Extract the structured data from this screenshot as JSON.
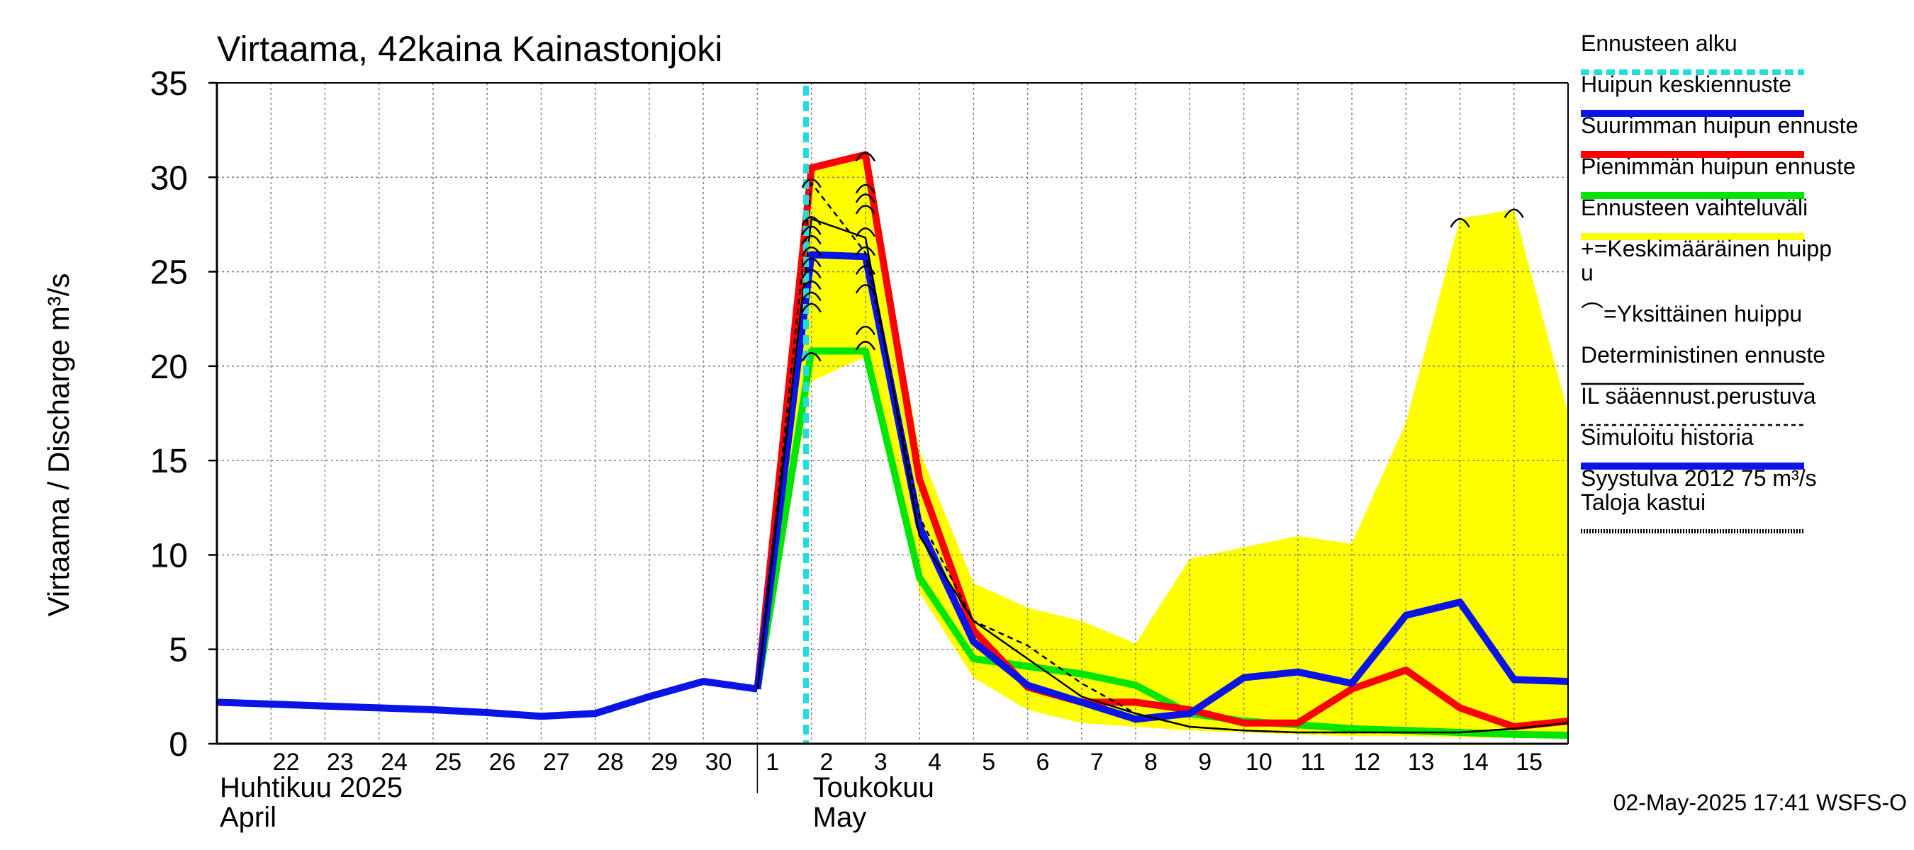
{
  "title": "Virtaama, 42kaina Kainastonjoki",
  "ylabel": "Virtaama / Discharge   m³/s",
  "timestamp": "02-May-2025 17:41 WSFS-O",
  "colors": {
    "forecast_start": "#22dddd",
    "mean_peak": "#0a14e6",
    "max_peak": "#ff0000",
    "min_peak": "#00e600",
    "range": "#ffff00",
    "black": "#000000",
    "grid": "#808080"
  },
  "legend": [
    {
      "key": "forecast_start",
      "label": "Ennusteen alku",
      "style": "dashed",
      "color": "#22dddd"
    },
    {
      "key": "mean_peak",
      "label": "Huipun keskiennuste",
      "style": "thick",
      "color": "#0a14e6"
    },
    {
      "key": "max_peak",
      "label": "Suurimman huipun ennuste",
      "style": "thick",
      "color": "#ff0000"
    },
    {
      "key": "min_peak",
      "label": "Pienimmän huipun ennuste",
      "style": "thick",
      "color": "#00e600"
    },
    {
      "key": "range",
      "label": "Ennusteen vaihteluväli",
      "style": "thick",
      "color": "#ffff00"
    },
    {
      "key": "avg_peak_marker",
      "label": "+=Keskimääräinen huipp\nu",
      "style": "none",
      "color": "#000000"
    },
    {
      "key": "single_peak_marker",
      "label": "⌒=Yksittäinen huippu",
      "style": "none",
      "color": "#000000"
    },
    {
      "key": "deterministic",
      "label": "Deterministinen ennuste",
      "style": "thin",
      "color": "#000000"
    },
    {
      "key": "il_based",
      "label": "IL sääennust.perustuva",
      "style": "dotted",
      "color": "#000000"
    },
    {
      "key": "simulated",
      "label": "Simuloitu historia",
      "style": "thick",
      "color": "#0a14e6"
    },
    {
      "key": "flood_ref",
      "label": "Syystulva 2012 75 m³/s\nTaloja kastui",
      "style": "dense",
      "color": "#000000"
    }
  ],
  "chart_data": {
    "type": "line",
    "title": "Virtaama, 42kaina Kainastonjoki",
    "ylabel": "Virtaama / Discharge   m³/s",
    "ylim": [
      0,
      35
    ],
    "yticks": [
      0,
      5,
      10,
      15,
      20,
      25,
      30,
      35
    ],
    "x_range": [
      "2025-04-21",
      "2025-05-16"
    ],
    "x_tick_labels": [
      {
        "date": "2025-04-22",
        "label": "22"
      },
      {
        "date": "2025-04-23",
        "label": "23"
      },
      {
        "date": "2025-04-24",
        "label": "24"
      },
      {
        "date": "2025-04-25",
        "label": "25"
      },
      {
        "date": "2025-04-26",
        "label": "26"
      },
      {
        "date": "2025-04-27",
        "label": "27"
      },
      {
        "date": "2025-04-28",
        "label": "28"
      },
      {
        "date": "2025-04-29",
        "label": "29"
      },
      {
        "date": "2025-04-30",
        "label": "30"
      },
      {
        "date": "2025-05-01",
        "label": "1"
      },
      {
        "date": "2025-05-02",
        "label": "2"
      },
      {
        "date": "2025-05-03",
        "label": "3"
      },
      {
        "date": "2025-05-04",
        "label": "4"
      },
      {
        "date": "2025-05-05",
        "label": "5"
      },
      {
        "date": "2025-05-06",
        "label": "6"
      },
      {
        "date": "2025-05-07",
        "label": "7"
      },
      {
        "date": "2025-05-08",
        "label": "8"
      },
      {
        "date": "2025-05-09",
        "label": "9"
      },
      {
        "date": "2025-05-10",
        "label": "10"
      },
      {
        "date": "2025-05-11",
        "label": "11"
      },
      {
        "date": "2025-05-12",
        "label": "12"
      },
      {
        "date": "2025-05-13",
        "label": "13"
      },
      {
        "date": "2025-05-14",
        "label": "14"
      },
      {
        "date": "2025-05-15",
        "label": "15"
      }
    ],
    "month_labels": [
      {
        "date": "2025-04-21",
        "line1": "Huhtikuu  2025",
        "line2": "April"
      },
      {
        "date": "2025-05-02",
        "line1": "Toukokuu",
        "line2": "May"
      }
    ],
    "month_divider": "2025-05-01",
    "forecast_start": "2025-05-02",
    "grid": true,
    "legend_position": "right",
    "range_band": {
      "upper": [
        [
          "2025-05-01",
          2.9
        ],
        [
          "2025-05-02",
          30.5
        ],
        [
          "2025-05-03",
          31.2
        ],
        [
          "2025-05-04",
          15.5
        ],
        [
          "2025-05-05",
          8.5
        ],
        [
          "2025-05-06",
          7.2
        ],
        [
          "2025-05-07",
          6.5
        ],
        [
          "2025-05-08",
          5.3
        ],
        [
          "2025-05-09",
          9.8
        ],
        [
          "2025-05-10",
          10.4
        ],
        [
          "2025-05-11",
          11.0
        ],
        [
          "2025-05-12",
          10.6
        ],
        [
          "2025-05-13",
          17.0
        ],
        [
          "2025-05-14",
          27.8
        ],
        [
          "2025-05-15",
          28.3
        ],
        [
          "2025-05-16",
          17.5
        ]
      ],
      "lower": [
        [
          "2025-05-16",
          0.3
        ],
        [
          "2025-05-15",
          0.3
        ],
        [
          "2025-05-14",
          0.35
        ],
        [
          "2025-05-13",
          0.4
        ],
        [
          "2025-05-12",
          0.4
        ],
        [
          "2025-05-11",
          0.5
        ],
        [
          "2025-05-10",
          0.6
        ],
        [
          "2025-05-09",
          0.7
        ],
        [
          "2025-05-08",
          0.9
        ],
        [
          "2025-05-07",
          1.1
        ],
        [
          "2025-05-06",
          1.8
        ],
        [
          "2025-05-05",
          3.5
        ],
        [
          "2025-05-04",
          8.0
        ],
        [
          "2025-05-03",
          20.5
        ],
        [
          "2025-05-02",
          19.2
        ],
        [
          "2025-05-01",
          2.9
        ]
      ]
    },
    "series": [
      {
        "key": "simulated",
        "name": "Simuloitu historia",
        "points": [
          [
            "2025-04-21",
            2.2
          ],
          [
            "2025-04-22",
            2.1
          ],
          [
            "2025-04-23",
            2.0
          ],
          [
            "2025-04-24",
            1.9
          ],
          [
            "2025-04-25",
            1.8
          ],
          [
            "2025-04-26",
            1.65
          ],
          [
            "2025-04-27",
            1.45
          ],
          [
            "2025-04-28",
            1.6
          ],
          [
            "2025-04-29",
            2.5
          ],
          [
            "2025-04-30",
            3.3
          ],
          [
            "2025-05-01",
            2.9
          ]
        ]
      },
      {
        "key": "min_peak",
        "name": "Pienimmän huipun ennuste",
        "points": [
          [
            "2025-05-01",
            2.9
          ],
          [
            "2025-05-02",
            20.8
          ],
          [
            "2025-05-03",
            20.8
          ],
          [
            "2025-05-04",
            8.8
          ],
          [
            "2025-05-05",
            4.5
          ],
          [
            "2025-05-06",
            4.1
          ],
          [
            "2025-05-07",
            3.7
          ],
          [
            "2025-05-08",
            3.1
          ],
          [
            "2025-05-09",
            1.6
          ],
          [
            "2025-05-10",
            1.2
          ],
          [
            "2025-05-11",
            1.0
          ],
          [
            "2025-05-12",
            0.8
          ],
          [
            "2025-05-13",
            0.7
          ],
          [
            "2025-05-14",
            0.6
          ],
          [
            "2025-05-15",
            0.5
          ],
          [
            "2025-05-16",
            0.45
          ]
        ]
      },
      {
        "key": "max_peak",
        "name": "Suurimman huipun ennuste",
        "points": [
          [
            "2025-05-01",
            2.9
          ],
          [
            "2025-05-02",
            30.5
          ],
          [
            "2025-05-03",
            31.2
          ],
          [
            "2025-05-04",
            14.0
          ],
          [
            "2025-05-05",
            6.0
          ],
          [
            "2025-05-06",
            3.0
          ],
          [
            "2025-05-07",
            2.2
          ],
          [
            "2025-05-08",
            2.2
          ],
          [
            "2025-05-09",
            1.8
          ],
          [
            "2025-05-10",
            1.1
          ],
          [
            "2025-05-11",
            1.1
          ],
          [
            "2025-05-12",
            2.9
          ],
          [
            "2025-05-13",
            3.9
          ],
          [
            "2025-05-14",
            1.9
          ],
          [
            "2025-05-15",
            0.9
          ],
          [
            "2025-05-16",
            1.2
          ]
        ]
      },
      {
        "key": "mean_peak",
        "name": "Huipun keskiennuste",
        "points": [
          [
            "2025-05-01",
            2.9
          ],
          [
            "2025-05-02",
            25.9
          ],
          [
            "2025-05-03",
            25.8
          ],
          [
            "2025-05-04",
            11.5
          ],
          [
            "2025-05-05",
            5.4
          ],
          [
            "2025-05-06",
            3.1
          ],
          [
            "2025-05-07",
            2.2
          ],
          [
            "2025-05-08",
            1.3
          ],
          [
            "2025-05-09",
            1.6
          ],
          [
            "2025-05-10",
            3.5
          ],
          [
            "2025-05-11",
            3.8
          ],
          [
            "2025-05-12",
            3.2
          ],
          [
            "2025-05-13",
            6.8
          ],
          [
            "2025-05-14",
            7.5
          ],
          [
            "2025-05-15",
            3.4
          ],
          [
            "2025-05-16",
            3.3
          ]
        ]
      },
      {
        "key": "deterministic",
        "name": "Deterministinen ennuste",
        "points": [
          [
            "2025-05-01",
            2.9
          ],
          [
            "2025-05-02",
            27.8
          ],
          [
            "2025-05-03",
            26.8
          ],
          [
            "2025-05-04",
            11.0
          ],
          [
            "2025-05-05",
            6.5
          ],
          [
            "2025-05-06",
            4.5
          ],
          [
            "2025-05-07",
            2.5
          ],
          [
            "2025-05-08",
            1.6
          ],
          [
            "2025-05-09",
            0.9
          ],
          [
            "2025-05-10",
            0.7
          ],
          [
            "2025-05-11",
            0.6
          ],
          [
            "2025-05-12",
            0.6
          ],
          [
            "2025-05-13",
            0.6
          ],
          [
            "2025-05-14",
            0.6
          ],
          [
            "2025-05-15",
            0.8
          ],
          [
            "2025-05-16",
            1.1
          ]
        ]
      },
      {
        "key": "il_based",
        "name": "IL sääennust.perustuva",
        "points": [
          [
            "2025-05-01",
            2.9
          ],
          [
            "2025-05-02",
            29.7
          ],
          [
            "2025-05-03",
            26.0
          ],
          [
            "2025-05-04",
            12.0
          ],
          [
            "2025-05-05",
            6.5
          ],
          [
            "2025-05-06",
            5.2
          ],
          [
            "2025-05-07",
            3.2
          ],
          [
            "2025-05-08",
            1.6
          ],
          [
            "2025-05-09",
            0.9
          ],
          [
            "2025-05-10",
            0.7
          ],
          [
            "2025-05-11",
            0.6
          ],
          [
            "2025-05-12",
            0.6
          ],
          [
            "2025-05-13",
            0.6
          ],
          [
            "2025-05-14",
            0.6
          ],
          [
            "2025-05-15",
            0.8
          ],
          [
            "2025-05-16",
            1.1
          ]
        ]
      }
    ],
    "single_peaks": [
      [
        "2025-05-02",
        29.8
      ],
      [
        "2025-05-02",
        27.8
      ],
      [
        "2025-05-02",
        27.3
      ],
      [
        "2025-05-02",
        26.8
      ],
      [
        "2025-05-02",
        26.2
      ],
      [
        "2025-05-02",
        25.6
      ],
      [
        "2025-05-02",
        25.0
      ],
      [
        "2025-05-02",
        24.4
      ],
      [
        "2025-05-02",
        23.8
      ],
      [
        "2025-05-02",
        23.2
      ],
      [
        "2025-05-02",
        20.6
      ],
      [
        "2025-05-03",
        31.2
      ],
      [
        "2025-05-03",
        29.5
      ],
      [
        "2025-05-03",
        29.0
      ],
      [
        "2025-05-03",
        28.4
      ],
      [
        "2025-05-03",
        27.2
      ],
      [
        "2025-05-03",
        26.2
      ],
      [
        "2025-05-03",
        25.2
      ],
      [
        "2025-05-03",
        24.2
      ],
      [
        "2025-05-03",
        22.0
      ],
      [
        "2025-05-03",
        21.2
      ],
      [
        "2025-05-14",
        27.7
      ],
      [
        "2025-05-15",
        28.2
      ]
    ]
  }
}
